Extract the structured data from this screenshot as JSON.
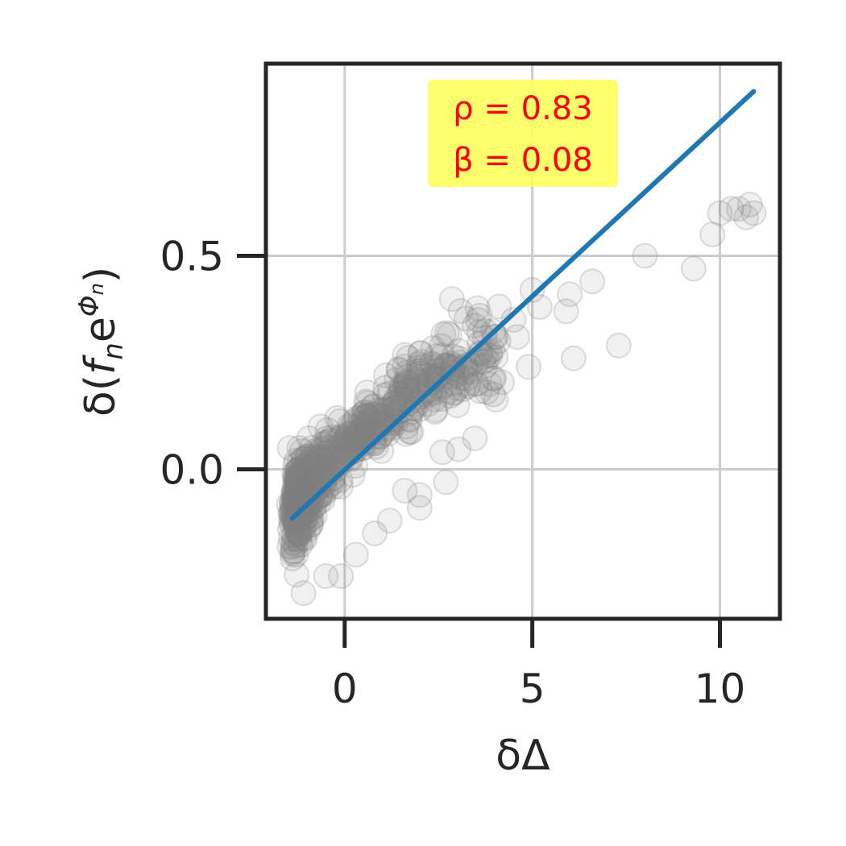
{
  "chart_data": {
    "type": "scatter",
    "xlabel": "δΔ",
    "ylabel_parts": {
      "prefix": "δ(",
      "f": "f",
      "n_sub": "n",
      "e": "e",
      "exp_phi": "Φ",
      "exp_sub": "n",
      "suffix": ")"
    },
    "xlim": [
      -2.1,
      11.6
    ],
    "ylim": [
      -0.35,
      0.95
    ],
    "x_ticks": [
      {
        "value": 0,
        "label": "0"
      },
      {
        "value": 5,
        "label": "5"
      },
      {
        "value": 10,
        "label": "10"
      }
    ],
    "y_ticks": [
      {
        "value": 0.0,
        "label": "0.0"
      },
      {
        "value": 0.5,
        "label": "0.5"
      }
    ],
    "grid": true,
    "annotation": {
      "lines": [
        "ρ = 0.83",
        "β = 0.08"
      ],
      "background": "#ffff55",
      "text_color": "#ff0000"
    },
    "fit_line": {
      "x": [
        -1.4,
        10.9
      ],
      "y": [
        -0.115,
        0.885
      ],
      "color": "#1f77b4"
    },
    "point_color": "#808080",
    "outlier_points": [
      {
        "x": 10.8,
        "y": 0.62
      },
      {
        "x": 10.5,
        "y": 0.61
      },
      {
        "x": 10.3,
        "y": 0.61
      },
      {
        "x": 10.0,
        "y": 0.6
      },
      {
        "x": 10.7,
        "y": 0.59
      },
      {
        "x": 10.9,
        "y": 0.6
      },
      {
        "x": 9.8,
        "y": 0.55
      },
      {
        "x": 9.3,
        "y": 0.47
      },
      {
        "x": 8.0,
        "y": 0.5
      },
      {
        "x": 6.6,
        "y": 0.44
      },
      {
        "x": 6.0,
        "y": 0.41
      },
      {
        "x": 5.9,
        "y": 0.37
      },
      {
        "x": 7.3,
        "y": 0.29
      },
      {
        "x": 6.1,
        "y": 0.26
      },
      {
        "x": 5.0,
        "y": 0.42
      },
      {
        "x": 5.2,
        "y": 0.38
      },
      {
        "x": 4.9,
        "y": 0.24
      },
      {
        "x": 4.5,
        "y": 0.35
      },
      {
        "x": 3.6,
        "y": 0.36
      },
      {
        "x": 2.7,
        "y": -0.03
      },
      {
        "x": 2.0,
        "y": -0.06
      },
      {
        "x": 2.0,
        "y": -0.09
      },
      {
        "x": 1.6,
        "y": -0.05
      },
      {
        "x": 1.2,
        "y": -0.12
      },
      {
        "x": 0.3,
        "y": -0.2
      },
      {
        "x": -0.1,
        "y": -0.25
      },
      {
        "x": -0.5,
        "y": -0.25
      },
      {
        "x": -1.1,
        "y": -0.29
      },
      {
        "x": -1.3,
        "y": -0.2
      },
      {
        "x": 0.8,
        "y": -0.15
      },
      {
        "x": 2.6,
        "y": 0.04
      },
      {
        "x": 3.0,
        "y": 0.15
      },
      {
        "x": 3.3,
        "y": 0.2
      },
      {
        "x": 4.1,
        "y": 0.3
      },
      {
        "x": 4.6,
        "y": 0.31
      },
      {
        "x": 0.6,
        "y": 0.18
      },
      {
        "x": -0.2,
        "y": 0.12
      },
      {
        "x": 1.1,
        "y": 0.22
      }
    ]
  }
}
